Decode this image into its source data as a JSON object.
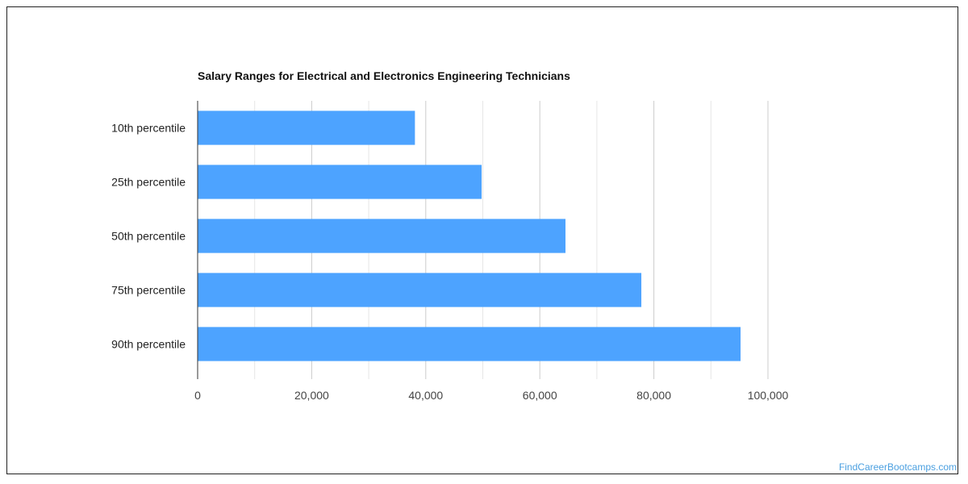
{
  "chart_data": {
    "type": "bar",
    "orientation": "horizontal",
    "title": "Salary Ranges for Electrical and Electronics Engineering Technicians",
    "xlabel": "",
    "ylabel": "",
    "categories": [
      "10th percentile",
      "25th percentile",
      "50th percentile",
      "75th percentile",
      "90th percentile"
    ],
    "values": [
      38100,
      49800,
      64500,
      77800,
      95200
    ],
    "xlim": [
      0,
      100000
    ],
    "x_ticks": [
      "0",
      "20,000",
      "40,000",
      "60,000",
      "80,000",
      "100,000"
    ],
    "grid": true,
    "bar_color": "#4da3ff"
  },
  "watermark": "FindCareerBootcamps.com"
}
